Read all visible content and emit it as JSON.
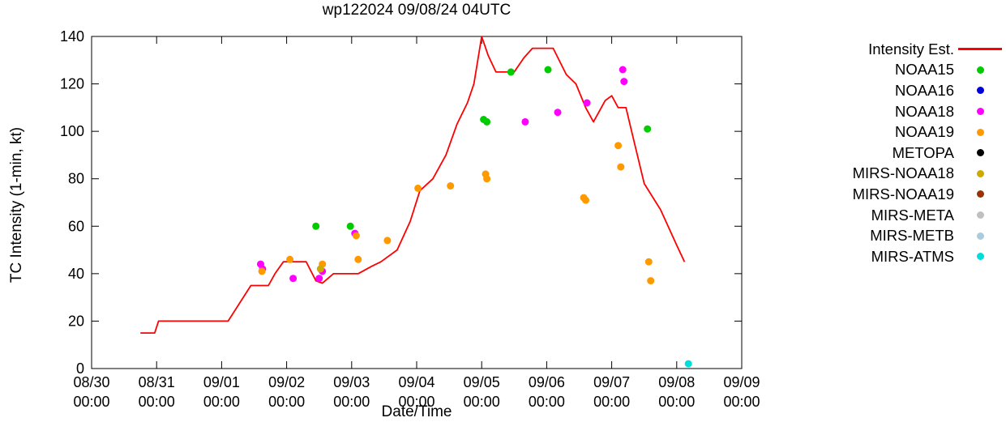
{
  "chart_data": {
    "type": "line+scatter",
    "title": "wp122024 09/08/24 04UTC",
    "xlabel": "Date/Time",
    "ylabel": "TC Intensity (1-min, kt)",
    "ylim": [
      0,
      140
    ],
    "yticks": [
      0,
      20,
      40,
      60,
      80,
      100,
      120,
      140
    ],
    "xlim_days": [
      0,
      10
    ],
    "x_axis_days": [
      "08/30",
      "08/31",
      "09/01",
      "09/02",
      "09/03",
      "09/04",
      "09/05",
      "09/06",
      "09/07",
      "09/08",
      "09/09"
    ],
    "x_tick_time": "00:00",
    "grid": false,
    "legend_position": "right-outside",
    "x_units_note": "days since 08/30 00:00 UTC",
    "series": [
      {
        "name": "Intensity Est.",
        "type": "line",
        "color": "#ff0000",
        "points": [
          [
            0.75,
            15
          ],
          [
            0.97,
            15
          ],
          [
            1.03,
            20
          ],
          [
            2.1,
            20
          ],
          [
            2.45,
            35
          ],
          [
            2.72,
            35
          ],
          [
            2.82,
            40
          ],
          [
            2.95,
            45
          ],
          [
            3.3,
            45
          ],
          [
            3.45,
            37
          ],
          [
            3.55,
            36
          ],
          [
            3.72,
            40
          ],
          [
            4.1,
            40
          ],
          [
            4.3,
            43
          ],
          [
            4.45,
            45
          ],
          [
            4.7,
            50
          ],
          [
            4.9,
            62
          ],
          [
            5.05,
            75
          ],
          [
            5.25,
            80
          ],
          [
            5.45,
            90
          ],
          [
            5.62,
            103
          ],
          [
            5.78,
            112
          ],
          [
            5.88,
            120
          ],
          [
            6.0,
            140
          ],
          [
            6.1,
            132
          ],
          [
            6.22,
            125
          ],
          [
            6.5,
            125
          ],
          [
            6.65,
            131
          ],
          [
            6.78,
            135
          ],
          [
            7.1,
            135
          ],
          [
            7.3,
            124
          ],
          [
            7.45,
            120
          ],
          [
            7.6,
            110
          ],
          [
            7.72,
            104
          ],
          [
            7.9,
            113
          ],
          [
            8.0,
            115
          ],
          [
            8.1,
            110
          ],
          [
            8.22,
            110
          ],
          [
            8.35,
            95
          ],
          [
            8.5,
            78
          ],
          [
            8.75,
            67
          ],
          [
            9.0,
            52
          ],
          [
            9.12,
            45
          ]
        ]
      },
      {
        "name": "NOAA15",
        "type": "scatter",
        "color": "#00cc00",
        "points": [
          [
            3.45,
            60
          ],
          [
            3.98,
            60
          ],
          [
            6.03,
            105
          ],
          [
            6.08,
            104
          ],
          [
            6.45,
            125
          ],
          [
            7.02,
            126
          ],
          [
            8.55,
            101
          ]
        ]
      },
      {
        "name": "NOAA16",
        "type": "scatter",
        "color": "#0000dd",
        "points": []
      },
      {
        "name": "NOAA18",
        "type": "scatter",
        "color": "#ff00ff",
        "points": [
          [
            2.6,
            44
          ],
          [
            2.63,
            42
          ],
          [
            3.1,
            38
          ],
          [
            3.5,
            38
          ],
          [
            3.55,
            41
          ],
          [
            4.05,
            57
          ],
          [
            6.67,
            104
          ],
          [
            7.17,
            108
          ],
          [
            7.62,
            112
          ],
          [
            8.17,
            126
          ],
          [
            8.19,
            121
          ]
        ]
      },
      {
        "name": "NOAA19",
        "type": "scatter",
        "color": "#ff9900",
        "points": [
          [
            2.62,
            41
          ],
          [
            3.05,
            46
          ],
          [
            3.55,
            44
          ],
          [
            4.07,
            56
          ],
          [
            4.1,
            46
          ],
          [
            4.55,
            54
          ],
          [
            5.02,
            76
          ],
          [
            5.52,
            77
          ],
          [
            6.06,
            82
          ],
          [
            6.08,
            80
          ],
          [
            7.57,
            72
          ],
          [
            7.6,
            71
          ],
          [
            8.1,
            94
          ],
          [
            8.14,
            85
          ],
          [
            8.57,
            45
          ],
          [
            8.6,
            37
          ]
        ]
      },
      {
        "name": "METOPA",
        "type": "scatter",
        "color": "#000000",
        "points": []
      },
      {
        "name": "MIRS-NOAA18",
        "type": "scatter",
        "color": "#ccaa00",
        "points": [
          [
            3.52,
            42
          ]
        ]
      },
      {
        "name": "MIRS-NOAA19",
        "type": "scatter",
        "color": "#993300",
        "points": []
      },
      {
        "name": "MIRS-META",
        "type": "scatter",
        "color": "#c0c0c0",
        "points": []
      },
      {
        "name": "MIRS-METB",
        "type": "scatter",
        "color": "#aaccdd",
        "points": []
      },
      {
        "name": "MIRS-ATMS",
        "type": "scatter",
        "color": "#00dddd",
        "points": [
          [
            9.18,
            2
          ]
        ]
      }
    ]
  }
}
